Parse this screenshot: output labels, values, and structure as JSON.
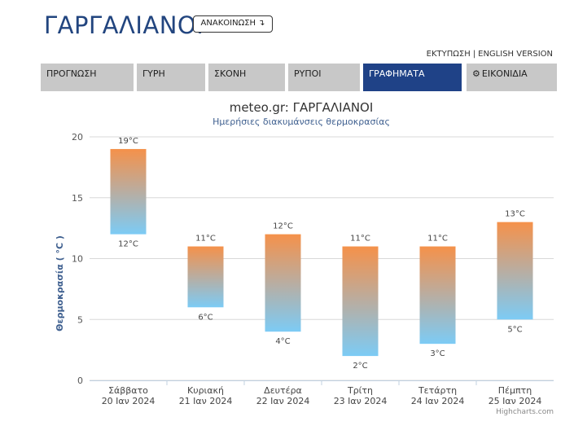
{
  "header": {
    "title": "ΓΑΡΓΑΛΙΑΝΟΙ",
    "announce_label": "ΑΝΑΚΟΙΝΩΣΗ",
    "announce_icon": "↴"
  },
  "top_links": {
    "print": "ΕΚΤΥΠΩΣΗ",
    "separator": "|",
    "english": "ENGLISH VERSION"
  },
  "tabs": [
    {
      "label": "ΠΡΟΓΝΩΣΗ",
      "active": false
    },
    {
      "label": "ΓΥΡΗ",
      "active": false
    },
    {
      "label": "ΣΚΟΝΗ",
      "active": false
    },
    {
      "label": "ΡΥΠΟΙ",
      "active": false
    },
    {
      "label": "ΓΡΑΦΗΜΑΤΑ",
      "active": true
    },
    {
      "label": "ΕΙΚΟΝΙΔΙΑ",
      "active": false,
      "icon": "gear-icon"
    }
  ],
  "colors": {
    "brand": "#22457f",
    "active_tab": "#1f4287",
    "inactive_tab": "#c8c8c8",
    "bar_top": "#f5914a",
    "bar_bottom": "#7ccbf5"
  },
  "chart_data": {
    "type": "columnrange",
    "title": "meteo.gr: ΓΑΡΓΑΛΙΑΝΟΙ",
    "subtitle": "Ημερήσιες διακυμάνσεις θερμοκρασίας",
    "ylabel": "Θερμοκρασία ( °C )",
    "ylim": [
      0,
      20
    ],
    "yticks": [
      0,
      5,
      10,
      15,
      20
    ],
    "grid": true,
    "categories": [
      [
        "Σάββατο",
        "20 Ιαν 2024"
      ],
      [
        "Κυριακή",
        "21 Ιαν 2024"
      ],
      [
        "Δευτέρα",
        "22 Ιαν 2024"
      ],
      [
        "Τρίτη",
        "23 Ιαν 2024"
      ],
      [
        "Τετάρτη",
        "24 Ιαν 2024"
      ],
      [
        "Πέμπτη",
        "25 Ιαν 2024"
      ]
    ],
    "low": [
      12,
      6,
      4,
      2,
      3,
      5
    ],
    "high": [
      19,
      11,
      12,
      11,
      11,
      13
    ],
    "unit": "°C",
    "credits": "Highcharts.com"
  }
}
